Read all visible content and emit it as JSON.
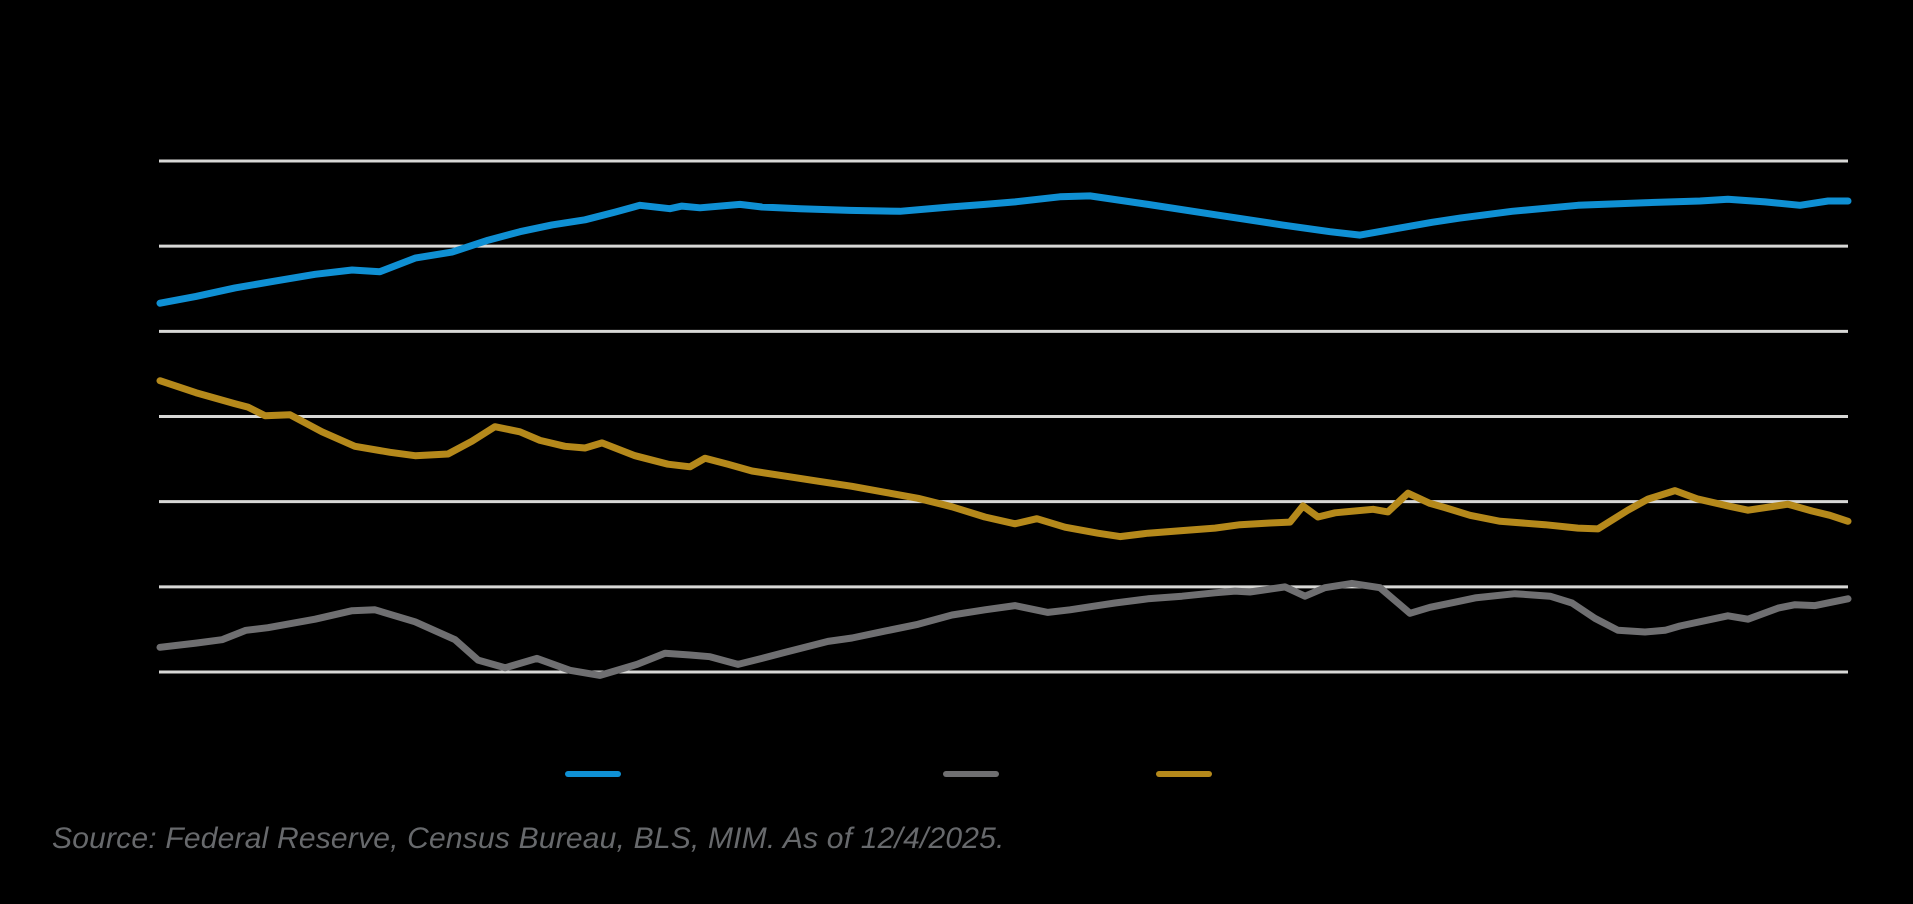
{
  "figure": {
    "background_color": "#000000",
    "note": "Chart title, axis tick labels and legend label text are not visible in the image (rendered dark/transparent on black); only gridlines, three line series, three legend swatches and the source line are visible."
  },
  "source_note": "Source: Federal Reserve, Census Bureau, BLS, MIM. As of 12/4/2025.",
  "chart_data": {
    "type": "line",
    "title": "",
    "x_axis": {
      "labels_visible": false
    },
    "y_axis": {
      "labels_visible": false,
      "gridline_count": 7,
      "value_unit": "gridline index: 0 = bottom gridline, 6 = top gridline",
      "ylim": [
        0,
        6
      ],
      "grid": true,
      "gridline_color": "#d8d8d6"
    },
    "legend": {
      "position": "bottom-center",
      "labels_visible": false,
      "items": [
        {
          "name": "blue-series",
          "color": "#0f90d4"
        },
        {
          "name": "gray-series",
          "color": "#6f6f71"
        },
        {
          "name": "gold-series",
          "color": "#b5891b"
        }
      ]
    },
    "series": [
      {
        "name": "blue-series",
        "color": "#0f90d4",
        "points": [
          [
            0.06,
            4.33
          ],
          [
            2.19,
            4.41
          ],
          [
            4.5,
            4.51
          ],
          [
            6.87,
            4.59
          ],
          [
            9.24,
            4.67
          ],
          [
            11.43,
            4.72
          ],
          [
            13.08,
            4.7
          ],
          [
            15.16,
            4.86
          ],
          [
            17.35,
            4.93
          ],
          [
            19.48,
            5.07
          ],
          [
            21.37,
            5.17
          ],
          [
            23.27,
            5.25
          ],
          [
            25.22,
            5.31
          ],
          [
            27.0,
            5.4
          ],
          [
            28.48,
            5.48
          ],
          [
            30.25,
            5.44
          ],
          [
            30.96,
            5.47
          ],
          [
            32.03,
            5.45
          ],
          [
            34.4,
            5.49
          ],
          [
            35.7,
            5.46
          ],
          [
            37.95,
            5.44
          ],
          [
            40.91,
            5.42
          ],
          [
            43.87,
            5.41
          ],
          [
            46.83,
            5.46
          ],
          [
            48.9,
            5.49
          ],
          [
            50.68,
            5.52
          ],
          [
            53.34,
            5.58
          ],
          [
            55.12,
            5.59
          ],
          [
            58.55,
            5.49
          ],
          [
            62.52,
            5.37
          ],
          [
            66.49,
            5.25
          ],
          [
            69.33,
            5.17
          ],
          [
            71.11,
            5.13
          ],
          [
            73.36,
            5.21
          ],
          [
            75.37,
            5.28
          ],
          [
            77.03,
            5.33
          ],
          [
            80.11,
            5.41
          ],
          [
            84.01,
            5.48
          ],
          [
            87.98,
            5.51
          ],
          [
            91.24,
            5.53
          ],
          [
            92.89,
            5.55
          ],
          [
            95.09,
            5.52
          ],
          [
            97.16,
            5.48
          ],
          [
            98.82,
            5.53
          ],
          [
            100,
            5.53
          ]
        ]
      },
      {
        "name": "gray-series",
        "color": "#6f6f71",
        "points": [
          [
            0.06,
            0.29
          ],
          [
            2.19,
            0.34
          ],
          [
            3.73,
            0.38
          ],
          [
            5.15,
            0.49
          ],
          [
            6.45,
            0.52
          ],
          [
            9.24,
            0.62
          ],
          [
            11.43,
            0.72
          ],
          [
            12.79,
            0.73
          ],
          [
            15.16,
            0.59
          ],
          [
            17.53,
            0.38
          ],
          [
            18.89,
            0.14
          ],
          [
            20.49,
            0.05
          ],
          [
            22.38,
            0.16
          ],
          [
            24.33,
            0.02
          ],
          [
            26.11,
            -0.04
          ],
          [
            28.3,
            0.09
          ],
          [
            29.96,
            0.22
          ],
          [
            31.44,
            0.2
          ],
          [
            32.62,
            0.18
          ],
          [
            34.28,
            0.09
          ],
          [
            35.7,
            0.16
          ],
          [
            37.06,
            0.23
          ],
          [
            39.61,
            0.36
          ],
          [
            41.03,
            0.4
          ],
          [
            42.98,
            0.48
          ],
          [
            44.94,
            0.56
          ],
          [
            46.95,
            0.67
          ],
          [
            48.9,
            0.73
          ],
          [
            50.68,
            0.78
          ],
          [
            52.63,
            0.7
          ],
          [
            53.94,
            0.73
          ],
          [
            55.59,
            0.78
          ],
          [
            56.6,
            0.81
          ],
          [
            58.55,
            0.86
          ],
          [
            60.57,
            0.89
          ],
          [
            62.52,
            0.93
          ],
          [
            63.71,
            0.95
          ],
          [
            64.59,
            0.94
          ],
          [
            66.67,
            1.0
          ],
          [
            67.85,
            0.89
          ],
          [
            69.03,
            0.99
          ],
          [
            70.63,
            1.04
          ],
          [
            72.29,
            0.99
          ],
          [
            74.07,
            0.69
          ],
          [
            75.25,
            0.76
          ],
          [
            76.73,
            0.82
          ],
          [
            77.92,
            0.87
          ],
          [
            80.28,
            0.92
          ],
          [
            82.36,
            0.89
          ],
          [
            83.66,
            0.81
          ],
          [
            85.02,
            0.63
          ],
          [
            86.38,
            0.49
          ],
          [
            87.98,
            0.47
          ],
          [
            89.17,
            0.49
          ],
          [
            90.05,
            0.54
          ],
          [
            91.95,
            0.62
          ],
          [
            92.89,
            0.66
          ],
          [
            94.08,
            0.62
          ],
          [
            95.86,
            0.75
          ],
          [
            96.86,
            0.79
          ],
          [
            98.05,
            0.78
          ],
          [
            100,
            0.86
          ]
        ]
      },
      {
        "name": "gold-series",
        "color": "#b5891b",
        "points": [
          [
            0.06,
            3.42
          ],
          [
            2.19,
            3.28
          ],
          [
            4.5,
            3.15
          ],
          [
            5.27,
            3.11
          ],
          [
            6.28,
            3.01
          ],
          [
            7.76,
            3.02
          ],
          [
            9.65,
            2.82
          ],
          [
            11.6,
            2.65
          ],
          [
            13.68,
            2.58
          ],
          [
            15.16,
            2.54
          ],
          [
            17.11,
            2.56
          ],
          [
            18.53,
            2.71
          ],
          [
            19.89,
            2.88
          ],
          [
            21.37,
            2.82
          ],
          [
            22.56,
            2.72
          ],
          [
            24.04,
            2.65
          ],
          [
            25.22,
            2.63
          ],
          [
            26.23,
            2.69
          ],
          [
            28.18,
            2.54
          ],
          [
            30.13,
            2.44
          ],
          [
            31.44,
            2.41
          ],
          [
            32.33,
            2.51
          ],
          [
            33.69,
            2.44
          ],
          [
            35.11,
            2.36
          ],
          [
            37.06,
            2.3
          ],
          [
            39.02,
            2.24
          ],
          [
            41.03,
            2.18
          ],
          [
            42.98,
            2.11
          ],
          [
            44.94,
            2.04
          ],
          [
            46.95,
            1.94
          ],
          [
            48.9,
            1.82
          ],
          [
            50.68,
            1.74
          ],
          [
            51.98,
            1.8
          ],
          [
            53.64,
            1.7
          ],
          [
            55.59,
            1.63
          ],
          [
            56.9,
            1.59
          ],
          [
            58.55,
            1.63
          ],
          [
            60.57,
            1.66
          ],
          [
            62.52,
            1.69
          ],
          [
            64.0,
            1.73
          ],
          [
            65.78,
            1.75
          ],
          [
            66.96,
            1.76
          ],
          [
            67.73,
            1.95
          ],
          [
            68.62,
            1.82
          ],
          [
            69.63,
            1.87
          ],
          [
            71.88,
            1.91
          ],
          [
            72.76,
            1.88
          ],
          [
            73.95,
            2.1
          ],
          [
            75.25,
            1.98
          ],
          [
            76.14,
            1.93
          ],
          [
            77.62,
            1.84
          ],
          [
            79.4,
            1.77
          ],
          [
            82.06,
            1.73
          ],
          [
            84.01,
            1.69
          ],
          [
            85.2,
            1.68
          ],
          [
            86.97,
            1.9
          ],
          [
            88.16,
            2.03
          ],
          [
            89.76,
            2.13
          ],
          [
            91.12,
            2.03
          ],
          [
            92.89,
            1.95
          ],
          [
            94.08,
            1.9
          ],
          [
            96.45,
            1.97
          ],
          [
            97.87,
            1.89
          ],
          [
            98.93,
            1.84
          ],
          [
            100,
            1.77
          ]
        ]
      }
    ]
  }
}
